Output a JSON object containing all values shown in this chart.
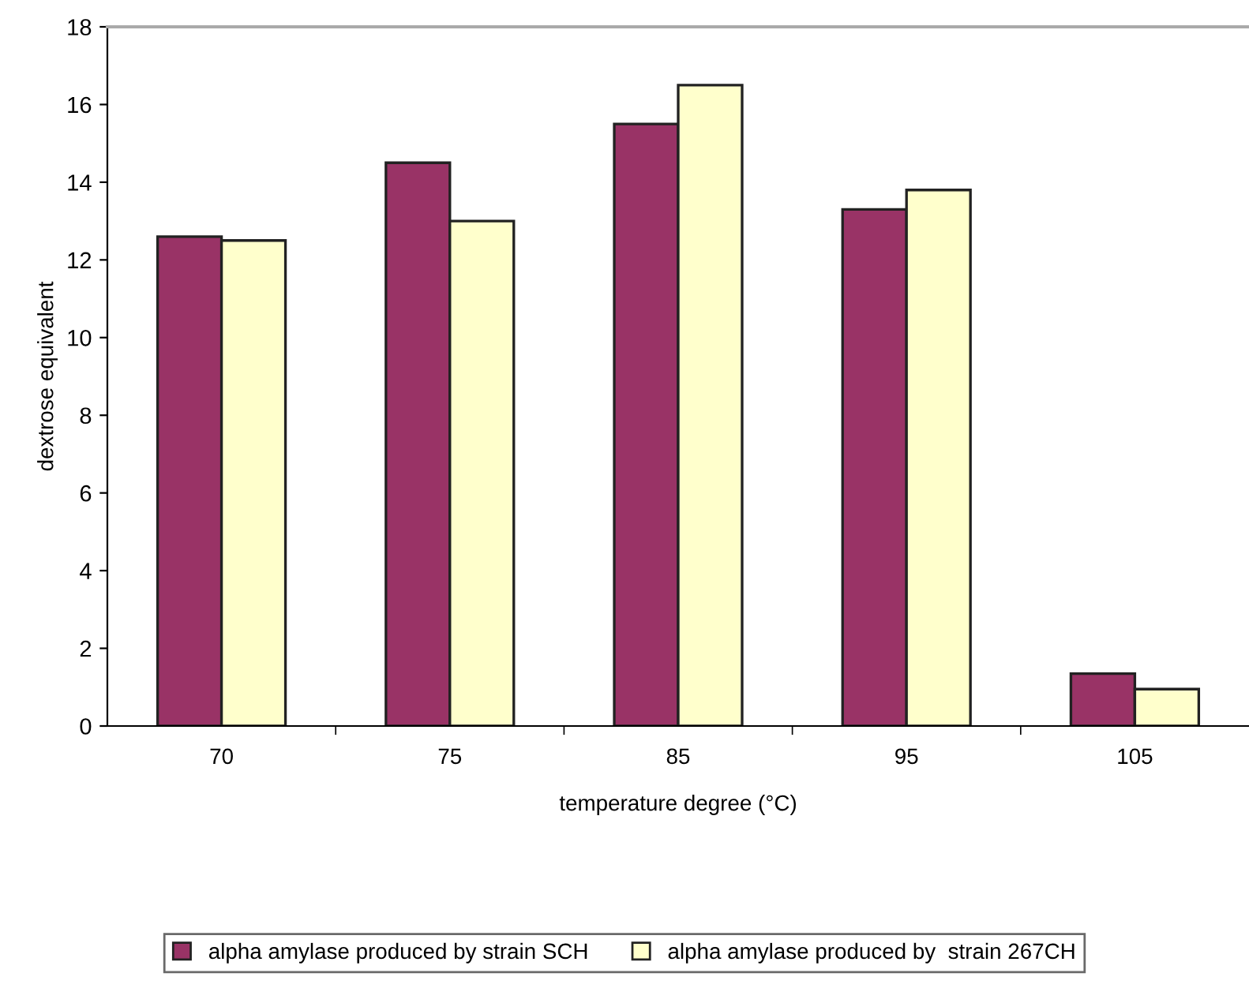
{
  "chart_data": {
    "type": "bar",
    "xlabel": "temperature degree (°C)",
    "ylabel": "dextrose equivalent",
    "categories": [
      "70",
      "75",
      "85",
      "95",
      "105"
    ],
    "series": [
      {
        "name": "alpha amylase produced by strain SCH",
        "color": "#993366",
        "values": [
          12.6,
          14.5,
          15.5,
          13.3,
          1.35
        ]
      },
      {
        "name": "alpha amylase produced by  strain 267CH",
        "color": "#ffffcc",
        "values": [
          12.5,
          13.0,
          16.5,
          13.8,
          0.95
        ]
      }
    ],
    "ylim": [
      0,
      18
    ],
    "yticks": [
      0,
      2,
      4,
      6,
      8,
      10,
      12,
      14,
      16,
      18
    ],
    "grid": false,
    "legend": "bottom"
  }
}
